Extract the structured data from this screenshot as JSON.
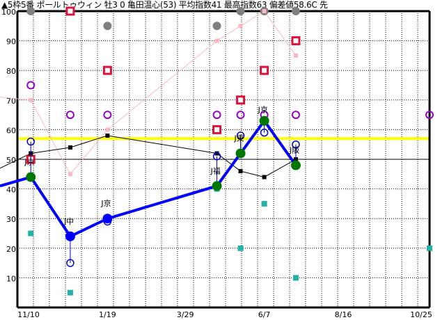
{
  "header": {
    "title": "▲5枠5番 ポールトゥウィン 牡3 0 亀田温心(53) 平均指数41 最高指数63 偏差値58.6C 先"
  },
  "chart_data": {
    "type": "line",
    "title": "▲5枠5番 ポールトゥウィン 牡3 0 亀田温心(53) 平均指数41 最高指数63 偏差値58.6C 先",
    "ylim": [
      0,
      100
    ],
    "yticks": [
      10,
      20,
      30,
      40,
      50,
      60,
      70,
      80,
      90,
      100
    ],
    "xticks": [
      "11/10",
      "1/19",
      "3/29",
      "6/7",
      "8/16",
      "10/25"
    ],
    "grid": true,
    "reference_lines": [
      {
        "value": 57,
        "color": "#ffff00"
      },
      {
        "value": 50,
        "color": "#000000"
      }
    ],
    "races": [
      {
        "date": "11/12",
        "label": "J京",
        "index": 44,
        "index_color": "#007700",
        "upper": 56,
        "avg": 52,
        "pink": 70,
        "red": 50,
        "purple": 75,
        "gray": 100,
        "teal": 25
      },
      {
        "date": "12/17",
        "label": "J中",
        "index": 24,
        "index_color": "#0000ff",
        "upper": 15,
        "avg": 54,
        "pink": 45,
        "red": 100,
        "purple": 65,
        "gray": null,
        "teal": 5
      },
      {
        "date": "1/19",
        "label": "J京",
        "index": 30,
        "index_color": "#0000ff",
        "upper": 29,
        "avg": 58,
        "pink": 60,
        "red": 80,
        "purple": 65,
        "gray": 95,
        "teal": 30
      },
      {
        "date": "4/26",
        "label": "J福",
        "index": 41,
        "index_color": "#007700",
        "upper": 51,
        "avg": 52,
        "pink": 90,
        "red": 60,
        "purple": 65,
        "gray": 95,
        "teal": 40
      },
      {
        "date": "5/17",
        "label": "J東",
        "index": 52,
        "index_color": "#007700",
        "upper": 58,
        "avg": 46,
        "pink": 95,
        "red": 70,
        "purple": 65,
        "gray": 100,
        "teal": 20
      },
      {
        "date": "6/7",
        "label": "J京",
        "index": 63,
        "index_color": "#007700",
        "upper": 59,
        "avg": 44,
        "pink": 100,
        "red": 80,
        "purple": 65,
        "gray": 100,
        "teal": 35
      },
      {
        "date": "7/5",
        "label": "J阪",
        "index": 48,
        "index_color": "#007700",
        "upper": 55,
        "avg": 50,
        "pink": 85,
        "red": 90,
        "purple": 65,
        "gray": 100,
        "teal": 10
      }
    ],
    "next": {
      "purple": 65,
      "teal": 20
    },
    "prior": {
      "index": 41,
      "avg": 47,
      "pink": 71
    },
    "colors": {
      "index_line": "#0000ff",
      "avg": "#000000",
      "pink": "#ffb6c1",
      "red": "#dc143c",
      "purple": "#9900cc",
      "gray": "#808080",
      "teal": "#20b2aa",
      "upper": "#0000cc"
    }
  }
}
